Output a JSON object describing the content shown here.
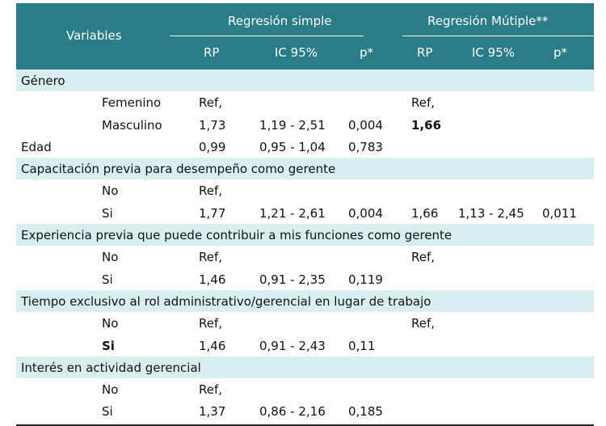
{
  "header": {
    "variables": "Variables",
    "simple": "Regresión simple",
    "multiple": "Regresión Mútiple**",
    "cols": [
      "RP",
      "IC 95%",
      "p*",
      "RP",
      "IC 95%",
      "p*"
    ]
  },
  "rows": [
    {
      "kind": "group",
      "label": "Género"
    },
    {
      "kind": "sub",
      "label": "Femenino",
      "rp1": "Ref,",
      "rp2": "Ref,"
    },
    {
      "kind": "sub",
      "label": "Masculino",
      "rp1": "1,73",
      "ic1": "1,19 - 2,51",
      "p1": "0,004",
      "rp2": "1,66"
    },
    {
      "kind": "plain",
      "label": "Edad",
      "rp1": "0,99",
      "ic1": "0,95 - 1,04",
      "p1": "0,783"
    },
    {
      "kind": "group",
      "label": "Capacitación previa para desempeño como gerente"
    },
    {
      "kind": "sub",
      "label": "No",
      "rp1": "Ref,"
    },
    {
      "kind": "sub",
      "label": "Si",
      "rp1": "1,77",
      "ic1": "1,21 - 2,61",
      "p1": "0,004",
      "rp2": "1,66",
      "ic2": "1,13 - 2,45",
      "p2": "0,011"
    },
    {
      "kind": "group",
      "label": "Experiencia previa que puede contribuir a mis funciones como gerente"
    },
    {
      "kind": "sub",
      "label": "No",
      "rp1": "Ref,",
      "rp2": "Ref,"
    },
    {
      "kind": "sub",
      "label": "Si",
      "rp1": "1,46",
      "ic1": "0,91 - 2,35",
      "p1": "0,119"
    },
    {
      "kind": "group",
      "label": "Tiempo exclusivo al rol administrativo/gerencial en lugar de trabajo"
    },
    {
      "kind": "sub",
      "label": "No",
      "rp1": "Ref,",
      "rp2": "Ref,"
    },
    {
      "kind": "sub",
      "label": "Si",
      "rp1": "1,46",
      "ic1": "0,91 - 2,43",
      "p1": "0,11"
    },
    {
      "kind": "group",
      "label": "Interés en actividad gerencial"
    },
    {
      "kind": "sub",
      "label": "No",
      "rp1": "Ref,"
    },
    {
      "kind": "sub",
      "label": "Si",
      "rp1": "1,37",
      "ic1": "0,86 - 2,16",
      "p1": "0,185"
    }
  ]
}
